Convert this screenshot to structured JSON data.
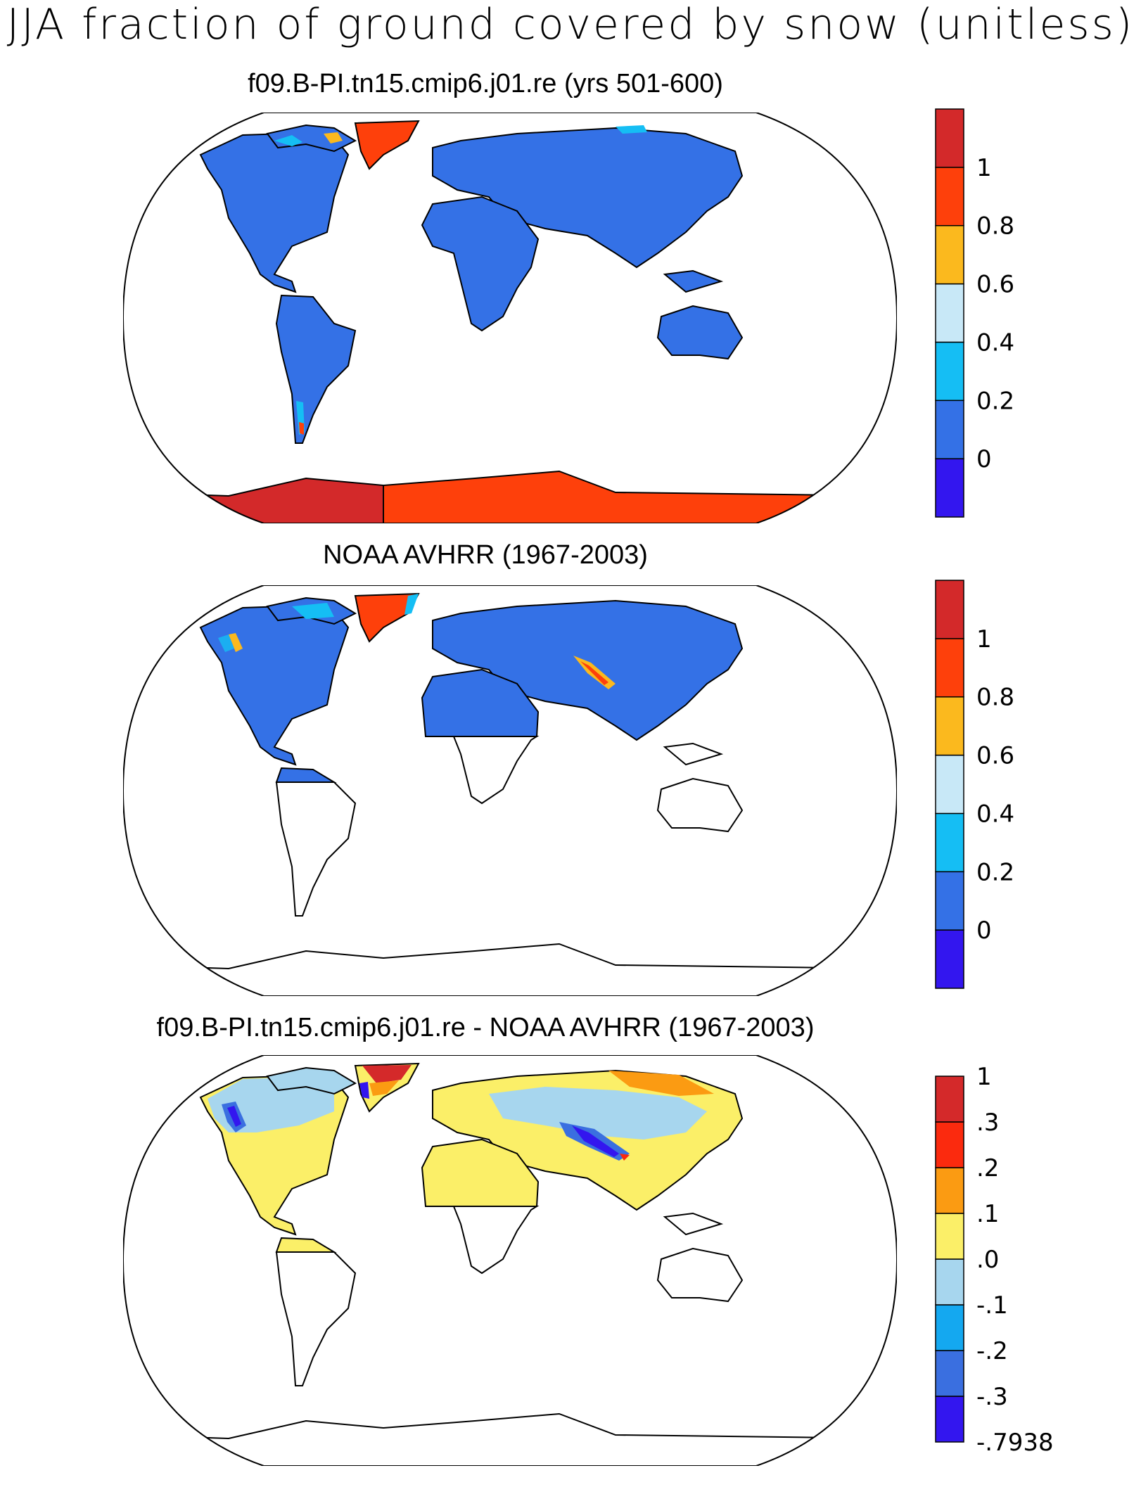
{
  "title": "JJA fraction of ground covered by snow (unitless)",
  "panels": [
    {
      "title": "f09.B-PI.tn15.cmip6.j01.re (yrs 501-600)",
      "colorbar": {
        "colors": [
          "#3316ef",
          "#3471e6",
          "#15bef4",
          "#c8e8f7",
          "#fbb91e",
          "#fe400b",
          "#d3292a"
        ],
        "labels": [
          "0",
          "0.2",
          "0.4",
          "0.6",
          "0.8",
          "1"
        ]
      }
    },
    {
      "title": "NOAA AVHRR (1967-2003)",
      "colorbar": {
        "colors": [
          "#3316ef",
          "#3471e6",
          "#15bef4",
          "#c8e8f7",
          "#fbb91e",
          "#fe400b",
          "#d3292a"
        ],
        "labels": [
          "0",
          "0.2",
          "0.4",
          "0.6",
          "0.8",
          "1"
        ]
      }
    },
    {
      "title": "f09.B-PI.tn15.cmip6.j01.re - NOAA AVHRR (1967-2003)",
      "colorbar": {
        "colors": [
          "#3316ef",
          "#3a6fe0",
          "#14a8f0",
          "#a7d6ee",
          "#fbef68",
          "#fb9b12",
          "#fb2a0e",
          "#d4292a"
        ],
        "labels": [
          "-.7938",
          "-.3",
          "-.2",
          "-.1",
          ".0",
          ".1",
          ".2",
          ".3",
          "1"
        ]
      }
    }
  ]
}
